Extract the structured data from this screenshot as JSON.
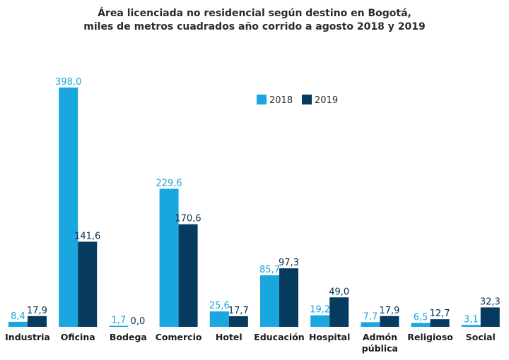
{
  "chart_data": {
    "type": "bar",
    "title_lines": [
      "Área licenciada no residencial según destino en Bogotá,",
      "miles de metros cuadrados año corrido a agosto 2018 y 2019"
    ],
    "categories": [
      "Industria",
      "Oficina",
      "Bodega",
      "Comercio",
      "Hotel",
      "Educación",
      "Hospital",
      "Admón pública",
      "Religioso",
      "Social"
    ],
    "category_label_lines": [
      [
        "Industria"
      ],
      [
        "Oficina"
      ],
      [
        "Bodega"
      ],
      [
        "Comercio"
      ],
      [
        "Hotel"
      ],
      [
        "Educación"
      ],
      [
        "Hospital"
      ],
      [
        "Admón",
        "pública"
      ],
      [
        "Religioso"
      ],
      [
        "Social"
      ]
    ],
    "series": [
      {
        "name": "2018",
        "color": "#1aa6de",
        "values": [
          8.4,
          398.0,
          1.7,
          229.6,
          25.6,
          85.7,
          19.2,
          7.7,
          6.5,
          3.1
        ],
        "labels": [
          "8,4",
          "398,0",
          "1,7",
          "229,6",
          "25,6",
          "85,7",
          "19,2",
          "7,7",
          "6,5",
          "3,1"
        ]
      },
      {
        "name": "2019",
        "color": "#063a5e",
        "values": [
          17.9,
          141.6,
          0.0,
          170.6,
          17.7,
          97.3,
          49.0,
          17.9,
          12.7,
          32.3
        ],
        "labels": [
          "17,9",
          "141,6",
          "0,0",
          "170,6",
          "17,7",
          "97,3",
          "49,0",
          "17,9",
          "12,7",
          "32,3"
        ]
      }
    ],
    "ylim": [
      0,
      398.0
    ],
    "grid": false,
    "legend_position": "top-right"
  }
}
